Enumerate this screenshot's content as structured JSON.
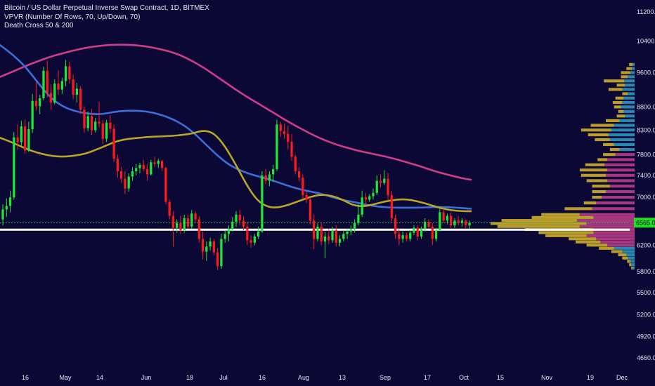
{
  "legend": {
    "symbol": "Bitcoin / US Dollar Perpetual Inverse Swap Contract, 1D, BITMEX",
    "vpvr": "VPVR (Number Of Rows, 70, Up/Down, 70)",
    "death_cross": "Death Cross 50 & 200"
  },
  "colors": {
    "background": "#0b0836",
    "up_candle": "#1ee833",
    "down_candle": "#ff1a1a",
    "ma50": "#b8a628",
    "ma100": "#3d6fd8",
    "ma200": "#cf3d8a",
    "vp_up": "#c4a52a",
    "vp_down": "#b03a86",
    "vp_value_area": "#2a8fb8",
    "price_line": "#22dd22",
    "support_line": "#ffffff"
  },
  "chart_data": {
    "type": "candlestick",
    "title": "Bitcoin / US Dollar Perpetual Inverse Swap Contract, 1D, BITMEX",
    "y_axis_scale": "log",
    "y_ticks": [
      11200,
      10400,
      9600,
      8800,
      8300,
      7800,
      7400,
      7000,
      6600,
      6200,
      5800,
      5500,
      5200,
      4920,
      4660
    ],
    "x_ticks": [
      "16",
      "May",
      "14",
      "Jun",
      "18",
      "Jul",
      "16",
      "Aug",
      "13",
      "Sep",
      "17",
      "Oct",
      "15",
      "Nov",
      "19",
      "Dec"
    ],
    "last_price_label": "6565.0",
    "last_price": 6565,
    "support_level": 6450,
    "candles": [
      {
        "o": 6620,
        "h": 6880,
        "l": 6520,
        "c": 6790
      },
      {
        "o": 6790,
        "h": 6980,
        "l": 6660,
        "c": 6850
      },
      {
        "o": 6850,
        "h": 7120,
        "l": 6740,
        "c": 7000
      },
      {
        "o": 7000,
        "h": 8260,
        "l": 6960,
        "c": 8150
      },
      {
        "o": 8150,
        "h": 8420,
        "l": 7900,
        "c": 8050
      },
      {
        "o": 8050,
        "h": 8500,
        "l": 7980,
        "c": 8380
      },
      {
        "o": 8380,
        "h": 8530,
        "l": 7820,
        "c": 7880
      },
      {
        "o": 7880,
        "h": 8480,
        "l": 7850,
        "c": 8320
      },
      {
        "o": 8320,
        "h": 9100,
        "l": 8240,
        "c": 8940
      },
      {
        "o": 8940,
        "h": 9380,
        "l": 8720,
        "c": 8820
      },
      {
        "o": 8820,
        "h": 9080,
        "l": 8640,
        "c": 9000
      },
      {
        "o": 9000,
        "h": 9750,
        "l": 8950,
        "c": 9650
      },
      {
        "o": 9650,
        "h": 9900,
        "l": 9020,
        "c": 9120
      },
      {
        "o": 9120,
        "h": 9320,
        "l": 8740,
        "c": 8900
      },
      {
        "o": 8900,
        "h": 9440,
        "l": 8860,
        "c": 9340
      },
      {
        "o": 9340,
        "h": 9660,
        "l": 9080,
        "c": 9200
      },
      {
        "o": 9200,
        "h": 9480,
        "l": 9100,
        "c": 9400
      },
      {
        "o": 9400,
        "h": 9920,
        "l": 9280,
        "c": 9760
      },
      {
        "o": 9760,
        "h": 9880,
        "l": 9340,
        "c": 9440
      },
      {
        "o": 9440,
        "h": 9560,
        "l": 8980,
        "c": 9080
      },
      {
        "o": 9080,
        "h": 9360,
        "l": 8900,
        "c": 9220
      },
      {
        "o": 9220,
        "h": 9280,
        "l": 8640,
        "c": 8740
      },
      {
        "o": 8740,
        "h": 8820,
        "l": 8240,
        "c": 8340
      },
      {
        "o": 8340,
        "h": 8700,
        "l": 8280,
        "c": 8600
      },
      {
        "o": 8600,
        "h": 8760,
        "l": 8200,
        "c": 8300
      },
      {
        "o": 8300,
        "h": 8560,
        "l": 8250,
        "c": 8480
      },
      {
        "o": 8480,
        "h": 8920,
        "l": 8360,
        "c": 8440
      },
      {
        "o": 8440,
        "h": 8520,
        "l": 8020,
        "c": 8120
      },
      {
        "o": 8120,
        "h": 8520,
        "l": 8060,
        "c": 8460
      },
      {
        "o": 8460,
        "h": 8620,
        "l": 8240,
        "c": 8330
      },
      {
        "o": 8330,
        "h": 8420,
        "l": 7660,
        "c": 7720
      },
      {
        "o": 7720,
        "h": 7800,
        "l": 7360,
        "c": 7480
      },
      {
        "o": 7480,
        "h": 7560,
        "l": 7260,
        "c": 7340
      },
      {
        "o": 7340,
        "h": 7480,
        "l": 7060,
        "c": 7160
      },
      {
        "o": 7160,
        "h": 7440,
        "l": 7100,
        "c": 7380
      },
      {
        "o": 7380,
        "h": 7560,
        "l": 7300,
        "c": 7480
      },
      {
        "o": 7480,
        "h": 7620,
        "l": 7400,
        "c": 7540
      },
      {
        "o": 7540,
        "h": 7640,
        "l": 7440,
        "c": 7600
      },
      {
        "o": 7600,
        "h": 7700,
        "l": 7480,
        "c": 7520
      },
      {
        "o": 7520,
        "h": 7620,
        "l": 7300,
        "c": 7420
      },
      {
        "o": 7420,
        "h": 7700,
        "l": 7400,
        "c": 7650
      },
      {
        "o": 7650,
        "h": 7760,
        "l": 7560,
        "c": 7620
      },
      {
        "o": 7620,
        "h": 7720,
        "l": 7540,
        "c": 7680
      },
      {
        "o": 7680,
        "h": 7700,
        "l": 7480,
        "c": 7540
      },
      {
        "o": 7540,
        "h": 7560,
        "l": 6880,
        "c": 6920
      },
      {
        "o": 6920,
        "h": 6960,
        "l": 6620,
        "c": 6680
      },
      {
        "o": 6680,
        "h": 6760,
        "l": 6180,
        "c": 6480
      },
      {
        "o": 6480,
        "h": 6620,
        "l": 6400,
        "c": 6560
      },
      {
        "o": 6560,
        "h": 6680,
        "l": 6380,
        "c": 6440
      },
      {
        "o": 6440,
        "h": 6700,
        "l": 6400,
        "c": 6640
      },
      {
        "o": 6640,
        "h": 6700,
        "l": 6460,
        "c": 6500
      },
      {
        "o": 6500,
        "h": 6780,
        "l": 6460,
        "c": 6720
      },
      {
        "o": 6720,
        "h": 6760,
        "l": 6560,
        "c": 6620
      },
      {
        "o": 6620,
        "h": 6680,
        "l": 6240,
        "c": 6300
      },
      {
        "o": 6300,
        "h": 6420,
        "l": 5980,
        "c": 6100
      },
      {
        "o": 6100,
        "h": 6260,
        "l": 5960,
        "c": 6180
      },
      {
        "o": 6180,
        "h": 6320,
        "l": 6120,
        "c": 6260
      },
      {
        "o": 6260,
        "h": 6300,
        "l": 6040,
        "c": 6090
      },
      {
        "o": 6090,
        "h": 6160,
        "l": 5820,
        "c": 5880
      },
      {
        "o": 5880,
        "h": 6380,
        "l": 5840,
        "c": 6300
      },
      {
        "o": 6300,
        "h": 6440,
        "l": 6240,
        "c": 6380
      },
      {
        "o": 6380,
        "h": 6520,
        "l": 6260,
        "c": 6460
      },
      {
        "o": 6460,
        "h": 6660,
        "l": 6420,
        "c": 6580
      },
      {
        "o": 6580,
        "h": 6760,
        "l": 6500,
        "c": 6700
      },
      {
        "o": 6700,
        "h": 6780,
        "l": 6520,
        "c": 6600
      },
      {
        "o": 6600,
        "h": 6680,
        "l": 6440,
        "c": 6500
      },
      {
        "o": 6500,
        "h": 6580,
        "l": 6200,
        "c": 6280
      },
      {
        "o": 6280,
        "h": 6360,
        "l": 6160,
        "c": 6240
      },
      {
        "o": 6240,
        "h": 6380,
        "l": 6200,
        "c": 6340
      },
      {
        "o": 6340,
        "h": 6500,
        "l": 6300,
        "c": 6420
      },
      {
        "o": 6420,
        "h": 7480,
        "l": 6400,
        "c": 7400
      },
      {
        "o": 7400,
        "h": 7520,
        "l": 7240,
        "c": 7300
      },
      {
        "o": 7300,
        "h": 7480,
        "l": 7200,
        "c": 7420
      },
      {
        "o": 7420,
        "h": 7600,
        "l": 7280,
        "c": 7520
      },
      {
        "o": 7520,
        "h": 8520,
        "l": 7480,
        "c": 8420
      },
      {
        "o": 8420,
        "h": 8480,
        "l": 8160,
        "c": 8280
      },
      {
        "o": 8280,
        "h": 8440,
        "l": 8120,
        "c": 8220
      },
      {
        "o": 8220,
        "h": 8400,
        "l": 7900,
        "c": 8060
      },
      {
        "o": 8060,
        "h": 8220,
        "l": 7680,
        "c": 7760
      },
      {
        "o": 7760,
        "h": 7800,
        "l": 7420,
        "c": 7480
      },
      {
        "o": 7480,
        "h": 7560,
        "l": 7280,
        "c": 7360
      },
      {
        "o": 7360,
        "h": 7420,
        "l": 6960,
        "c": 7040
      },
      {
        "o": 7040,
        "h": 7100,
        "l": 6900,
        "c": 6960
      },
      {
        "o": 6960,
        "h": 7000,
        "l": 6540,
        "c": 6600
      },
      {
        "o": 6600,
        "h": 6700,
        "l": 6140,
        "c": 6300
      },
      {
        "o": 6300,
        "h": 6560,
        "l": 6260,
        "c": 6500
      },
      {
        "o": 6500,
        "h": 6580,
        "l": 6200,
        "c": 6260
      },
      {
        "o": 6260,
        "h": 6420,
        "l": 6000,
        "c": 6340
      },
      {
        "o": 6340,
        "h": 6460,
        "l": 6220,
        "c": 6280
      },
      {
        "o": 6280,
        "h": 6500,
        "l": 6240,
        "c": 6440
      },
      {
        "o": 6440,
        "h": 6520,
        "l": 6180,
        "c": 6240
      },
      {
        "o": 6240,
        "h": 6360,
        "l": 6180,
        "c": 6300
      },
      {
        "o": 6300,
        "h": 6440,
        "l": 6260,
        "c": 6380
      },
      {
        "o": 6380,
        "h": 6460,
        "l": 6300,
        "c": 6420
      },
      {
        "o": 6420,
        "h": 6520,
        "l": 6360,
        "c": 6460
      },
      {
        "o": 6460,
        "h": 6620,
        "l": 6400,
        "c": 6560
      },
      {
        "o": 6560,
        "h": 6880,
        "l": 6520,
        "c": 6700
      },
      {
        "o": 6700,
        "h": 7120,
        "l": 6660,
        "c": 7000
      },
      {
        "o": 7000,
        "h": 7080,
        "l": 6880,
        "c": 6960
      },
      {
        "o": 6960,
        "h": 7060,
        "l": 6920,
        "c": 7020
      },
      {
        "o": 7020,
        "h": 7160,
        "l": 6960,
        "c": 7080
      },
      {
        "o": 7080,
        "h": 7400,
        "l": 7040,
        "c": 7300
      },
      {
        "o": 7300,
        "h": 7420,
        "l": 7180,
        "c": 7260
      },
      {
        "o": 7260,
        "h": 7500,
        "l": 7220,
        "c": 7340
      },
      {
        "o": 7340,
        "h": 7440,
        "l": 6960,
        "c": 7040
      },
      {
        "o": 7040,
        "h": 7120,
        "l": 6580,
        "c": 6640
      },
      {
        "o": 6640,
        "h": 6700,
        "l": 6300,
        "c": 6380
      },
      {
        "o": 6380,
        "h": 6460,
        "l": 6200,
        "c": 6300
      },
      {
        "o": 6300,
        "h": 6420,
        "l": 6240,
        "c": 6360
      },
      {
        "o": 6360,
        "h": 6400,
        "l": 6260,
        "c": 6300
      },
      {
        "o": 6300,
        "h": 6440,
        "l": 6260,
        "c": 6400
      },
      {
        "o": 6400,
        "h": 6520,
        "l": 6360,
        "c": 6480
      },
      {
        "o": 6480,
        "h": 6520,
        "l": 6280,
        "c": 6340
      },
      {
        "o": 6340,
        "h": 6500,
        "l": 6300,
        "c": 6460
      },
      {
        "o": 6460,
        "h": 6640,
        "l": 6420,
        "c": 6580
      },
      {
        "o": 6580,
        "h": 6620,
        "l": 6460,
        "c": 6500
      },
      {
        "o": 6500,
        "h": 6560,
        "l": 6200,
        "c": 6300
      },
      {
        "o": 6300,
        "h": 6480,
        "l": 6260,
        "c": 6440
      },
      {
        "o": 6440,
        "h": 6800,
        "l": 6420,
        "c": 6740
      },
      {
        "o": 6740,
        "h": 6800,
        "l": 6560,
        "c": 6600
      },
      {
        "o": 6600,
        "h": 6720,
        "l": 6540,
        "c": 6680
      },
      {
        "o": 6680,
        "h": 6740,
        "l": 6480,
        "c": 6520
      },
      {
        "o": 6520,
        "h": 6640,
        "l": 6480,
        "c": 6600
      },
      {
        "o": 6600,
        "h": 6680,
        "l": 6520,
        "c": 6560
      },
      {
        "o": 6560,
        "h": 6640,
        "l": 6500,
        "c": 6600
      },
      {
        "o": 6600,
        "h": 6620,
        "l": 6480,
        "c": 6520
      },
      {
        "o": 6520,
        "h": 6600,
        "l": 6460,
        "c": 6560
      }
    ],
    "ma50": [
      8140,
      8060,
      7960,
      7870,
      7810,
      7770,
      7760,
      7780,
      7820,
      7900,
      7990,
      8080,
      8120,
      8140,
      8160,
      8170,
      8180,
      8200,
      8230,
      8300,
      8240,
      7980,
      7620,
      7240,
      6950,
      6830,
      6820,
      6870,
      6940,
      7010,
      7050,
      7030,
      6960,
      6860,
      6840,
      6880,
      6930,
      6960,
      6970,
      6930,
      6880,
      6820,
      6780,
      6760,
      6760
    ],
    "ma100": [
      10300,
      10050,
      9750,
      9350,
      9000,
      8800,
      8700,
      8650,
      8640,
      8700,
      8720,
      8720,
      8680,
      8600,
      8480,
      8300,
      8050,
      7800,
      7600,
      7480,
      7400,
      7340,
      7260,
      7180,
      7120,
      7080,
      7010,
      6950,
      6910,
      6860,
      6830,
      6820,
      6820,
      6820,
      6830,
      6830,
      6820,
      6800
    ],
    "ma200": [
      9500,
      9620,
      9750,
      9870,
      9980,
      10070,
      10150,
      10220,
      10270,
      10300,
      10310,
      10300,
      10270,
      10210,
      10140,
      10030,
      9880,
      9700,
      9500,
      9300,
      9110,
      8940,
      8780,
      8620,
      8460,
      8320,
      8190,
      8080,
      7990,
      7920,
      7860,
      7810,
      7760,
      7700,
      7630,
      7560,
      7480,
      7420,
      7360,
      7320
    ],
    "volume_profile": [
      {
        "price": 9800,
        "up": 5,
        "down": 3,
        "va": false
      },
      {
        "price": 9700,
        "up": 8,
        "down": 4,
        "va": false
      },
      {
        "price": 9600,
        "up": 14,
        "down": 6,
        "va": false
      },
      {
        "price": 9500,
        "up": 10,
        "down": 10,
        "va": false
      },
      {
        "price": 9400,
        "up": 30,
        "down": 15,
        "va": false
      },
      {
        "price": 9300,
        "up": 12,
        "down": 14,
        "va": false
      },
      {
        "price": 9200,
        "up": 20,
        "down": 18,
        "va": false
      },
      {
        "price": 9100,
        "up": 8,
        "down": 10,
        "va": false
      },
      {
        "price": 9000,
        "up": 12,
        "down": 16,
        "va": false
      },
      {
        "price": 8900,
        "up": 14,
        "down": 18,
        "va": false
      },
      {
        "price": 8800,
        "up": 10,
        "down": 20,
        "va": false
      },
      {
        "price": 8700,
        "up": 8,
        "down": 16,
        "va": false
      },
      {
        "price": 8600,
        "up": 12,
        "down": 14,
        "va": false
      },
      {
        "price": 8500,
        "up": 20,
        "down": 22,
        "va": false
      },
      {
        "price": 8400,
        "up": 34,
        "down": 30,
        "va": false
      },
      {
        "price": 8300,
        "up": 44,
        "down": 34,
        "va": false
      },
      {
        "price": 8200,
        "up": 30,
        "down": 38,
        "va": false
      },
      {
        "price": 8100,
        "up": 22,
        "down": 36,
        "va": false
      },
      {
        "price": 8000,
        "up": 16,
        "down": 30,
        "va": false
      },
      {
        "price": 7900,
        "up": 14,
        "down": 22,
        "va": false
      },
      {
        "price": 7800,
        "up": 18,
        "down": 28,
        "va": true
      },
      {
        "price": 7700,
        "up": 14,
        "down": 40,
        "va": true
      },
      {
        "price": 7600,
        "up": 28,
        "down": 44,
        "va": true
      },
      {
        "price": 7500,
        "up": 40,
        "down": 40,
        "va": true
      },
      {
        "price": 7400,
        "up": 36,
        "down": 42,
        "va": true
      },
      {
        "price": 7300,
        "up": 30,
        "down": 40,
        "va": true
      },
      {
        "price": 7200,
        "up": 26,
        "down": 36,
        "va": true
      },
      {
        "price": 7100,
        "up": 20,
        "down": 42,
        "va": true
      },
      {
        "price": 7000,
        "up": 14,
        "down": 48,
        "va": true
      },
      {
        "price": 6900,
        "up": 18,
        "down": 56,
        "va": true
      },
      {
        "price": 6800,
        "up": 40,
        "down": 62,
        "va": true
      },
      {
        "price": 6700,
        "up": 56,
        "down": 80,
        "va": true
      },
      {
        "price": 6650,
        "up": 90,
        "down": 60,
        "va": true
      },
      {
        "price": 6600,
        "up": 110,
        "down": 84,
        "va": true
      },
      {
        "price": 6550,
        "up": 140,
        "down": 70,
        "va": true
      },
      {
        "price": 6500,
        "up": 120,
        "down": 80,
        "va": true
      },
      {
        "price": 6450,
        "up": 100,
        "down": 60,
        "va": true
      },
      {
        "price": 6400,
        "up": 80,
        "down": 60,
        "va": true
      },
      {
        "price": 6350,
        "up": 60,
        "down": 70,
        "va": true
      },
      {
        "price": 6300,
        "up": 40,
        "down": 56,
        "va": true
      },
      {
        "price": 6250,
        "up": 36,
        "down": 50,
        "va": true
      },
      {
        "price": 6200,
        "up": 30,
        "down": 40,
        "va": true
      },
      {
        "price": 6150,
        "up": 22,
        "down": 30,
        "va": false
      },
      {
        "price": 6100,
        "up": 16,
        "down": 18,
        "va": false
      },
      {
        "price": 6050,
        "up": 12,
        "down": 12,
        "va": false
      },
      {
        "price": 6000,
        "up": 8,
        "down": 10,
        "va": false
      },
      {
        "price": 5950,
        "up": 5,
        "down": 6,
        "va": false
      },
      {
        "price": 5900,
        "up": 3,
        "down": 5,
        "va": false
      },
      {
        "price": 5850,
        "up": 2,
        "down": 3,
        "va": false
      }
    ]
  }
}
